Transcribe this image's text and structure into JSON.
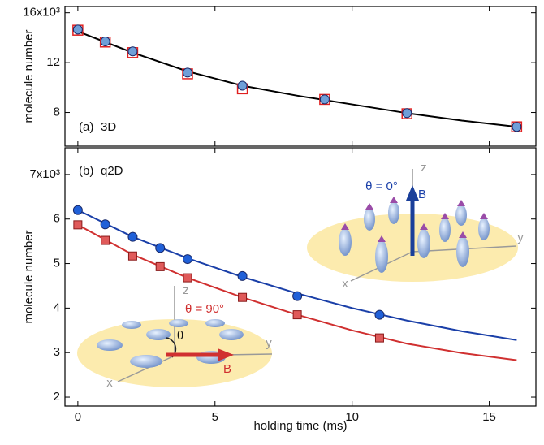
{
  "chart_data": [
    {
      "type": "scatter",
      "panel_label": "(a)",
      "panel_name": "3D",
      "ylabel": "molecule number",
      "xlim": [
        -0.47,
        16.7
      ],
      "xticks": [
        0,
        5,
        10,
        15
      ],
      "ylim": [
        5.3,
        16.5
      ],
      "yticks": [
        8,
        12,
        {
          "value": 16,
          "label": "16x10³"
        }
      ],
      "series": [
        {
          "style": "line",
          "color": "#000000",
          "x": [
            0,
            2,
            4,
            6,
            8,
            10,
            12,
            14,
            16
          ],
          "values": [
            14.5,
            12.8,
            11.3,
            10.15,
            9.35,
            8.65,
            7.95,
            7.35,
            6.85
          ]
        },
        {
          "style": "square-open",
          "color": "#e02020",
          "x": [
            0,
            1,
            2,
            4,
            6,
            9,
            12,
            16
          ],
          "values": [
            14.6,
            13.65,
            12.8,
            11.1,
            9.9,
            9.05,
            7.9,
            6.85
          ]
        },
        {
          "style": "circle",
          "color": "#6f9fd8",
          "x": [
            0,
            1,
            2,
            4,
            6,
            9,
            12,
            16
          ],
          "values": [
            14.65,
            13.7,
            12.9,
            11.2,
            10.15,
            9.05,
            7.95,
            6.85
          ]
        }
      ]
    },
    {
      "type": "scatter",
      "panel_label": "(b)",
      "panel_name": "q2D",
      "ylabel": "molecule number",
      "xlabel": "holding time (ms)",
      "xlim": [
        -0.47,
        16.7
      ],
      "xticks": [
        0,
        5,
        10,
        15
      ],
      "ylim": [
        1.8,
        7.6
      ],
      "yticks": [
        2,
        3,
        4,
        5,
        6,
        {
          "value": 7,
          "label": "7x10³"
        }
      ],
      "series": [
        {
          "style": "line",
          "color": "#1a3fa8",
          "x": [
            0,
            2,
            4,
            6,
            8,
            10,
            12,
            14,
            16
          ],
          "values": [
            6.2,
            5.6,
            5.12,
            4.7,
            4.33,
            4.0,
            3.72,
            3.48,
            3.28
          ]
        },
        {
          "style": "line",
          "color": "#d03030",
          "x": [
            0,
            2,
            4,
            6,
            8,
            10,
            12,
            14,
            16
          ],
          "values": [
            5.87,
            5.2,
            4.68,
            4.24,
            3.85,
            3.5,
            3.2,
            2.99,
            2.83
          ]
        },
        {
          "style": "circle",
          "color": "#2060d8",
          "x": [
            0,
            1,
            2,
            3,
            4,
            6,
            8,
            11
          ],
          "values": [
            6.2,
            5.88,
            5.6,
            5.35,
            5.1,
            4.72,
            4.27,
            3.85
          ]
        },
        {
          "style": "square",
          "color": "#e05a5a",
          "x": [
            0,
            1,
            2,
            3,
            4,
            6,
            8,
            11
          ],
          "values": [
            5.87,
            5.52,
            5.17,
            4.93,
            4.68,
            4.24,
            3.85,
            3.33
          ]
        }
      ],
      "annotations": [
        "θ = 0°",
        "B",
        "z",
        "y",
        "x",
        "θ = 90°",
        "θ",
        "z",
        "y",
        "x",
        "B"
      ]
    }
  ]
}
